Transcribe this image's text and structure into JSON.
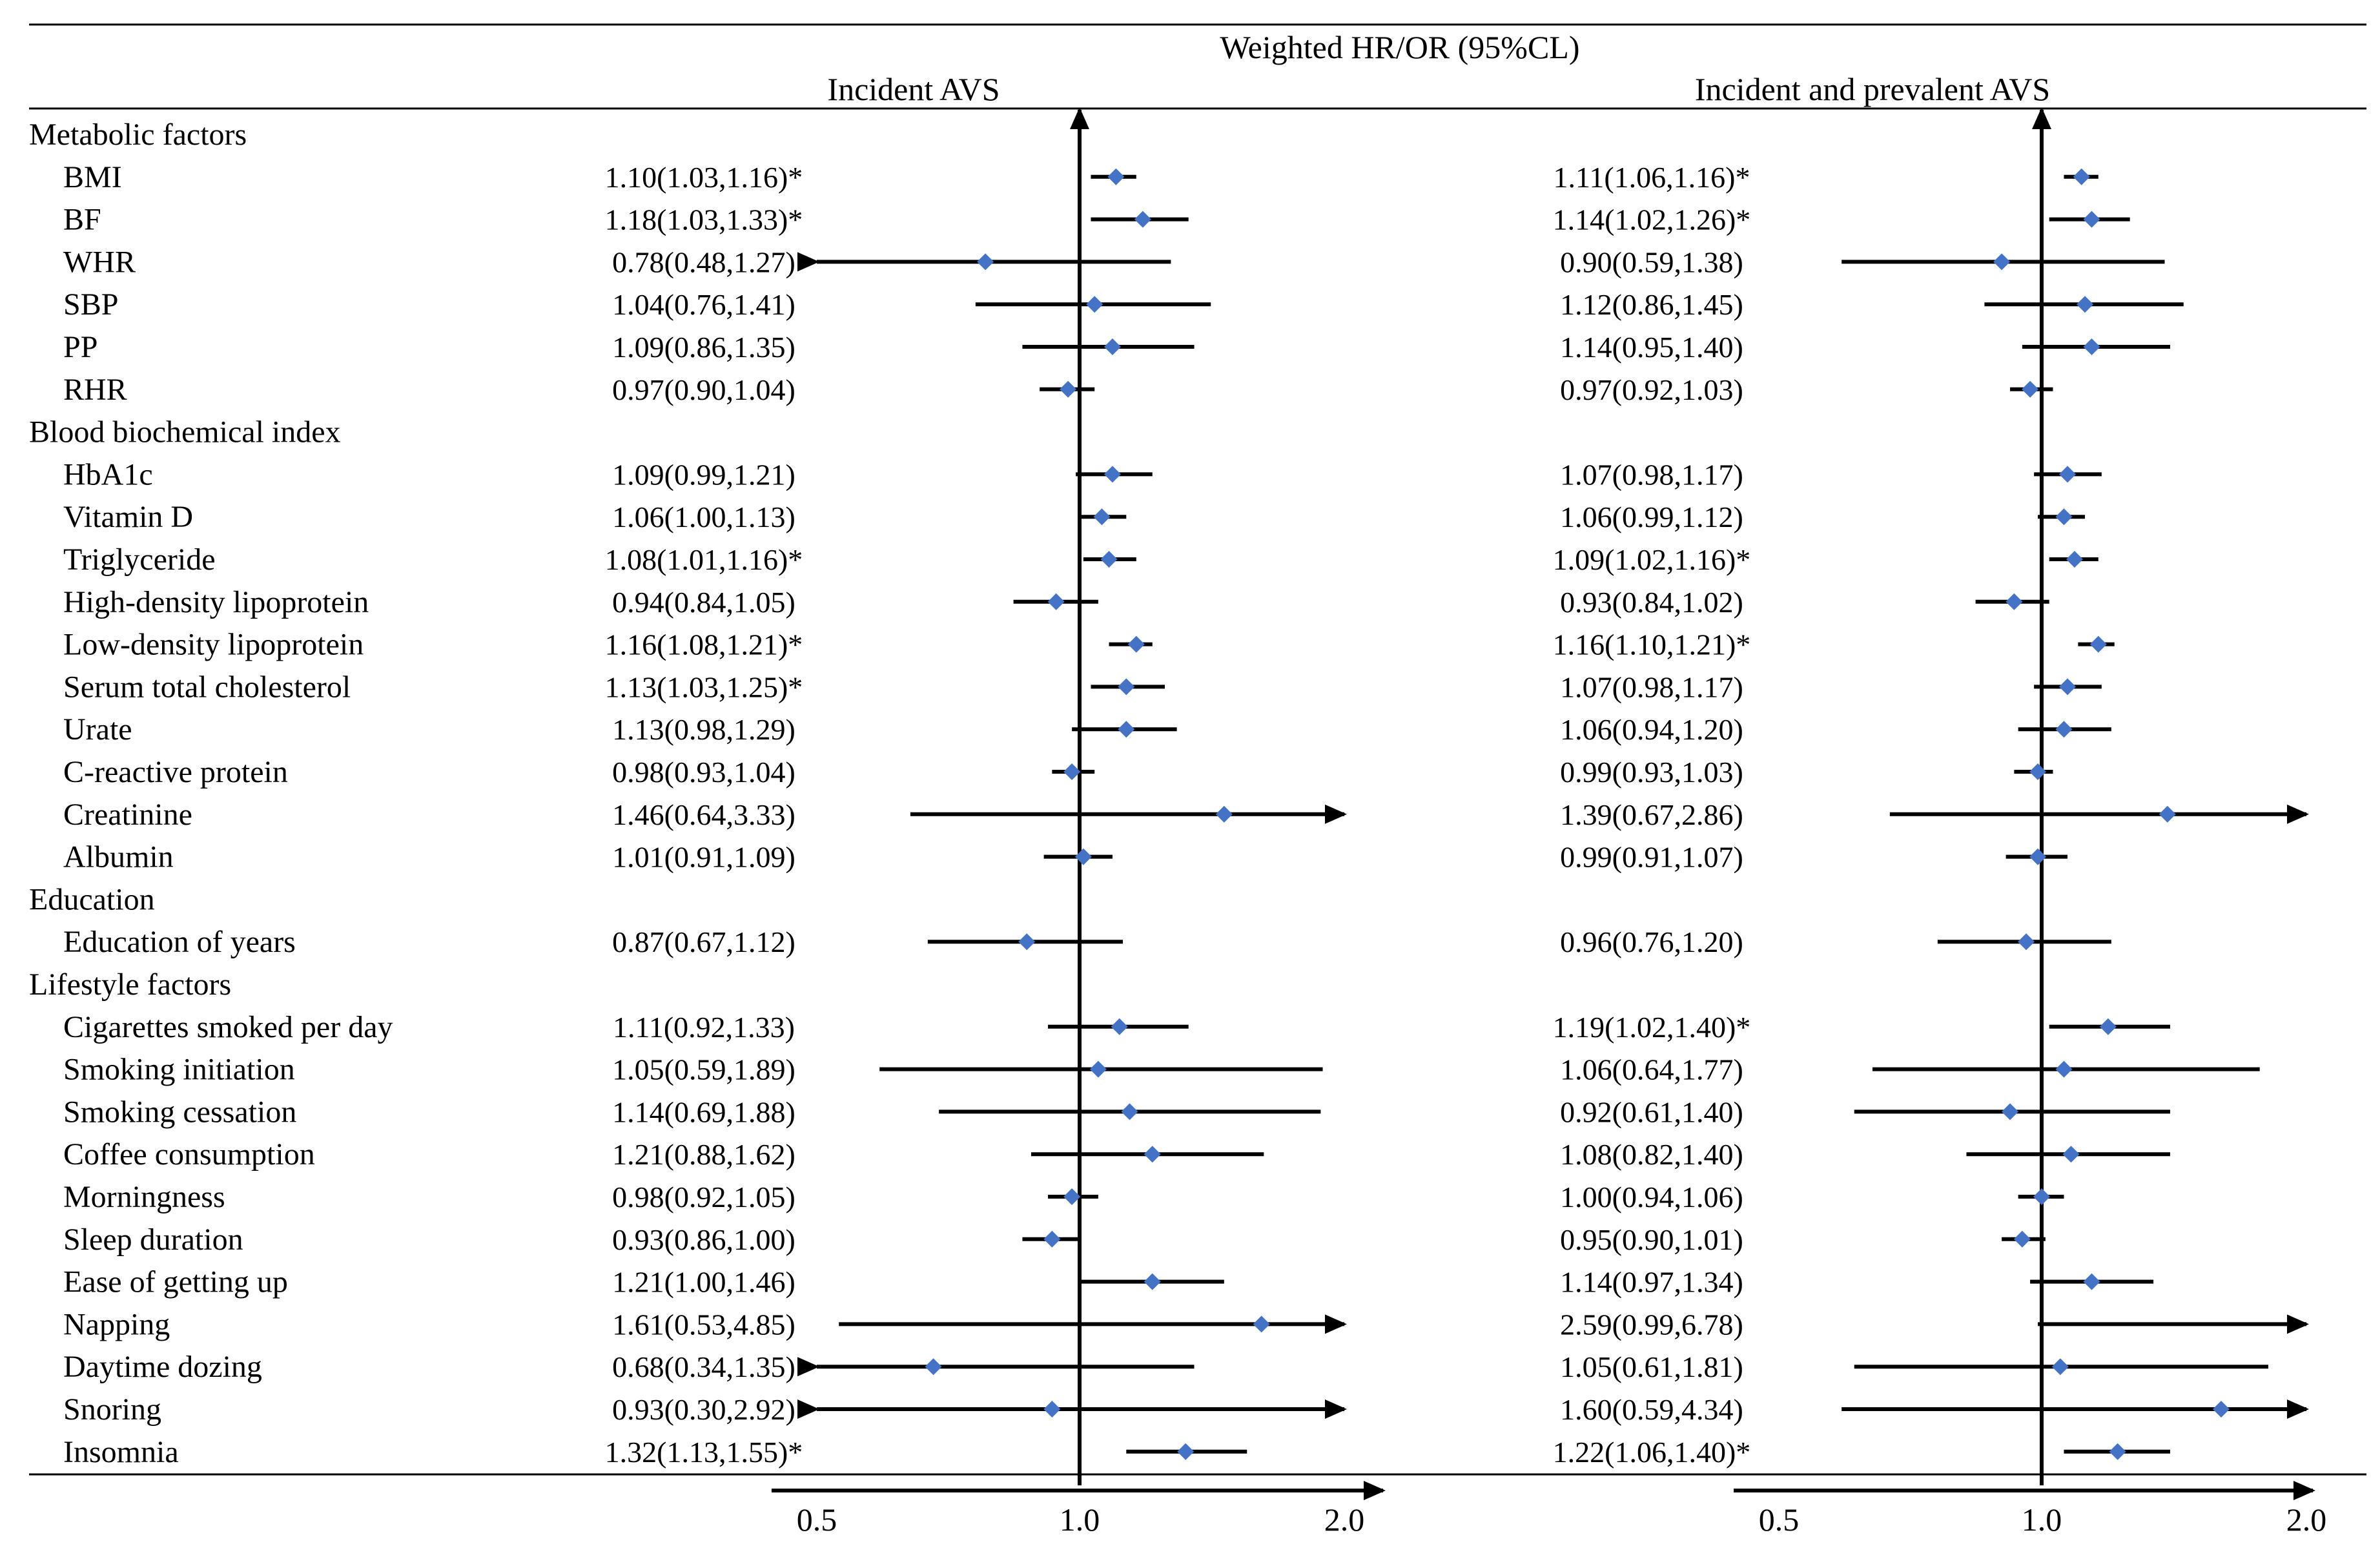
{
  "chart_data": {
    "type": "forest",
    "title": "Weighted HR/OR  (95%CL)",
    "marker_color": "#4472C4",
    "xlim": [
      0.5,
      2.0
    ],
    "axis_scale": "log",
    "ticks": [
      {
        "value": 0.5,
        "label": "0.5"
      },
      {
        "value": 1.0,
        "label": "1.0"
      },
      {
        "value": 2.0,
        "label": "2.0"
      }
    ],
    "panels": [
      {
        "name": "Incident AVS"
      },
      {
        "name": "Incident and prevalent AVS"
      }
    ],
    "rows": [
      {
        "kind": "group",
        "label": "Metabolic factors"
      },
      {
        "kind": "item",
        "label": "BMI",
        "est": [
          {
            "text": "1.10(1.03,1.16)*",
            "est": 1.1,
            "lo": 1.03,
            "hi": 1.16
          },
          {
            "text": "1.11(1.06,1.16)*",
            "est": 1.11,
            "lo": 1.06,
            "hi": 1.16
          }
        ]
      },
      {
        "kind": "item",
        "label": "BF",
        "est": [
          {
            "text": "1.18(1.03,1.33)*",
            "est": 1.18,
            "lo": 1.03,
            "hi": 1.33
          },
          {
            "text": "1.14(1.02,1.26)*",
            "est": 1.14,
            "lo": 1.02,
            "hi": 1.26
          }
        ]
      },
      {
        "kind": "item",
        "label": "WHR",
        "est": [
          {
            "text": "0.78(0.48,1.27)",
            "est": 0.78,
            "lo": 0.48,
            "hi": 1.27
          },
          {
            "text": "0.90(0.59,1.38)",
            "est": 0.9,
            "lo": 0.59,
            "hi": 1.38
          }
        ]
      },
      {
        "kind": "item",
        "label": "SBP",
        "est": [
          {
            "text": "1.04(0.76,1.41)",
            "est": 1.04,
            "lo": 0.76,
            "hi": 1.41
          },
          {
            "text": "1.12(0.86,1.45)",
            "est": 1.12,
            "lo": 0.86,
            "hi": 1.45
          }
        ]
      },
      {
        "kind": "item",
        "label": "PP",
        "est": [
          {
            "text": "1.09(0.86,1.35)",
            "est": 1.09,
            "lo": 0.86,
            "hi": 1.35
          },
          {
            "text": "1.14(0.95,1.40)",
            "est": 1.14,
            "lo": 0.95,
            "hi": 1.4
          }
        ]
      },
      {
        "kind": "item",
        "label": "RHR",
        "est": [
          {
            "text": "0.97(0.90,1.04)",
            "est": 0.97,
            "lo": 0.9,
            "hi": 1.04
          },
          {
            "text": "0.97(0.92,1.03)",
            "est": 0.97,
            "lo": 0.92,
            "hi": 1.03
          }
        ]
      },
      {
        "kind": "group",
        "label": "Blood biochemical index"
      },
      {
        "kind": "item",
        "label": "HbA1c",
        "est": [
          {
            "text": "1.09(0.99,1.21)",
            "est": 1.09,
            "lo": 0.99,
            "hi": 1.21
          },
          {
            "text": "1.07(0.98,1.17)",
            "est": 1.07,
            "lo": 0.98,
            "hi": 1.17
          }
        ]
      },
      {
        "kind": "item",
        "label": "Vitamin D",
        "est": [
          {
            "text": "1.06(1.00,1.13)",
            "est": 1.06,
            "lo": 1.0,
            "hi": 1.13
          },
          {
            "text": "1.06(0.99,1.12)",
            "est": 1.06,
            "lo": 0.99,
            "hi": 1.12
          }
        ]
      },
      {
        "kind": "item",
        "label": "Triglyceride",
        "est": [
          {
            "text": "1.08(1.01,1.16)*",
            "est": 1.08,
            "lo": 1.01,
            "hi": 1.16
          },
          {
            "text": "1.09(1.02,1.16)*",
            "est": 1.09,
            "lo": 1.02,
            "hi": 1.16
          }
        ]
      },
      {
        "kind": "item",
        "label": "High-density lipoprotein",
        "est": [
          {
            "text": "0.94(0.84,1.05)",
            "est": 0.94,
            "lo": 0.84,
            "hi": 1.05
          },
          {
            "text": "0.93(0.84,1.02)",
            "est": 0.93,
            "lo": 0.84,
            "hi": 1.02
          }
        ]
      },
      {
        "kind": "item",
        "label": "Low-density lipoprotein",
        "est": [
          {
            "text": "1.16(1.08,1.21)*",
            "est": 1.16,
            "lo": 1.08,
            "hi": 1.21
          },
          {
            "text": "1.16(1.10,1.21)*",
            "est": 1.16,
            "lo": 1.1,
            "hi": 1.21
          }
        ]
      },
      {
        "kind": "item",
        "label": "Serum total cholesterol",
        "est": [
          {
            "text": "1.13(1.03,1.25)*",
            "est": 1.13,
            "lo": 1.03,
            "hi": 1.25
          },
          {
            "text": "1.07(0.98,1.17)",
            "est": 1.07,
            "lo": 0.98,
            "hi": 1.17
          }
        ]
      },
      {
        "kind": "item",
        "label": "Urate",
        "est": [
          {
            "text": "1.13(0.98,1.29)",
            "est": 1.13,
            "lo": 0.98,
            "hi": 1.29
          },
          {
            "text": "1.06(0.94,1.20)",
            "est": 1.06,
            "lo": 0.94,
            "hi": 1.2
          }
        ]
      },
      {
        "kind": "item",
        "label": "C-reactive protein",
        "est": [
          {
            "text": "0.98(0.93,1.04)",
            "est": 0.98,
            "lo": 0.93,
            "hi": 1.04
          },
          {
            "text": "0.99(0.93,1.03)",
            "est": 0.99,
            "lo": 0.93,
            "hi": 1.03
          }
        ]
      },
      {
        "kind": "item",
        "label": "Creatinine",
        "est": [
          {
            "text": "1.46(0.64,3.33)",
            "est": 1.46,
            "lo": 0.64,
            "hi": 3.33
          },
          {
            "text": "1.39(0.67,2.86)",
            "est": 1.39,
            "lo": 0.67,
            "hi": 2.86
          }
        ]
      },
      {
        "kind": "item",
        "label": "Albumin",
        "est": [
          {
            "text": "1.01(0.91,1.09)",
            "est": 1.01,
            "lo": 0.91,
            "hi": 1.09
          },
          {
            "text": "0.99(0.91,1.07)",
            "est": 0.99,
            "lo": 0.91,
            "hi": 1.07
          }
        ]
      },
      {
        "kind": "group",
        "label": "Education"
      },
      {
        "kind": "item",
        "label": "Education of years",
        "est": [
          {
            "text": "0.87(0.67,1.12)",
            "est": 0.87,
            "lo": 0.67,
            "hi": 1.12
          },
          {
            "text": "0.96(0.76,1.20)",
            "est": 0.96,
            "lo": 0.76,
            "hi": 1.2
          }
        ]
      },
      {
        "kind": "group",
        "label": "Lifestyle factors"
      },
      {
        "kind": "item",
        "label": "Cigarettes smoked per day",
        "est": [
          {
            "text": "1.11(0.92,1.33)",
            "est": 1.11,
            "lo": 0.92,
            "hi": 1.33
          },
          {
            "text": "1.19(1.02,1.40)*",
            "est": 1.19,
            "lo": 1.02,
            "hi": 1.4
          }
        ]
      },
      {
        "kind": "item",
        "label": "Smoking initiation",
        "est": [
          {
            "text": "1.05(0.59,1.89)",
            "est": 1.05,
            "lo": 0.59,
            "hi": 1.89
          },
          {
            "text": "1.06(0.64,1.77)",
            "est": 1.06,
            "lo": 0.64,
            "hi": 1.77
          }
        ]
      },
      {
        "kind": "item",
        "label": "Smoking cessation",
        "est": [
          {
            "text": "1.14(0.69,1.88)",
            "est": 1.14,
            "lo": 0.69,
            "hi": 1.88
          },
          {
            "text": "0.92(0.61,1.40)",
            "est": 0.92,
            "lo": 0.61,
            "hi": 1.4
          }
        ]
      },
      {
        "kind": "item",
        "label": "Coffee consumption",
        "est": [
          {
            "text": "1.21(0.88,1.62)",
            "est": 1.21,
            "lo": 0.88,
            "hi": 1.62
          },
          {
            "text": "1.08(0.82,1.40)",
            "est": 1.08,
            "lo": 0.82,
            "hi": 1.4
          }
        ]
      },
      {
        "kind": "item",
        "label": "Morningness",
        "est": [
          {
            "text": "0.98(0.92,1.05)",
            "est": 0.98,
            "lo": 0.92,
            "hi": 1.05
          },
          {
            "text": "1.00(0.94,1.06)",
            "est": 1.0,
            "lo": 0.94,
            "hi": 1.06
          }
        ]
      },
      {
        "kind": "item",
        "label": "Sleep duration",
        "est": [
          {
            "text": "0.93(0.86,1.00)",
            "est": 0.93,
            "lo": 0.86,
            "hi": 1.0
          },
          {
            "text": "0.95(0.90,1.01)",
            "est": 0.95,
            "lo": 0.9,
            "hi": 1.01
          }
        ]
      },
      {
        "kind": "item",
        "label": "Ease of getting up",
        "est": [
          {
            "text": "1.21(1.00,1.46)",
            "est": 1.21,
            "lo": 1.0,
            "hi": 1.46
          },
          {
            "text": "1.14(0.97,1.34)",
            "est": 1.14,
            "lo": 0.97,
            "hi": 1.34
          }
        ]
      },
      {
        "kind": "item",
        "label": "Napping",
        "est": [
          {
            "text": "1.61(0.53,4.85)",
            "est": 1.61,
            "lo": 0.53,
            "hi": 4.85
          },
          {
            "text": "2.59(0.99,6.78)",
            "est": 2.59,
            "lo": 0.99,
            "hi": 6.78
          }
        ]
      },
      {
        "kind": "item",
        "label": "Daytime dozing",
        "est": [
          {
            "text": "0.68(0.34,1.35)",
            "est": 0.68,
            "lo": 0.34,
            "hi": 1.35
          },
          {
            "text": "1.05(0.61,1.81)",
            "est": 1.05,
            "lo": 0.61,
            "hi": 1.81
          }
        ]
      },
      {
        "kind": "item",
        "label": "Snoring",
        "est": [
          {
            "text": "0.93(0.30,2.92)",
            "est": 0.93,
            "lo": 0.3,
            "hi": 2.92
          },
          {
            "text": "1.60(0.59,4.34)",
            "est": 1.6,
            "lo": 0.59,
            "hi": 4.34
          }
        ]
      },
      {
        "kind": "item",
        "label": "Insomnia",
        "est": [
          {
            "text": "1.32(1.13,1.55)*",
            "est": 1.32,
            "lo": 1.13,
            "hi": 1.55
          },
          {
            "text": "1.22(1.06,1.40)*",
            "est": 1.22,
            "lo": 1.06,
            "hi": 1.4
          }
        ]
      }
    ]
  }
}
